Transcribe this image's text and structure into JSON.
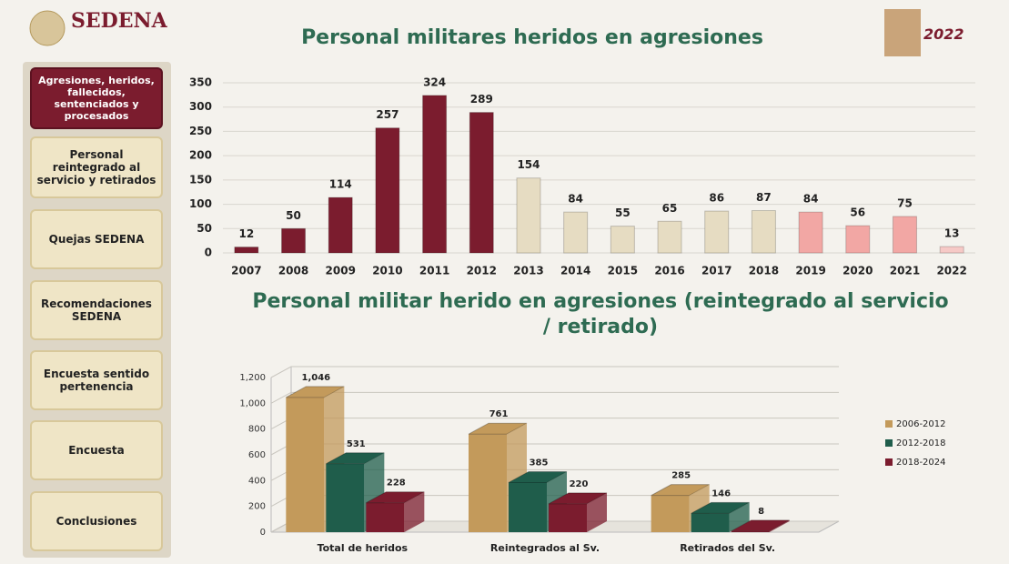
{
  "header": {
    "logo": "SEDENA",
    "badge": "2022"
  },
  "sidebar": {
    "active": 0,
    "buttons": [
      "Agresiones, heridos, fallecidos, sentenciados y procesados",
      "Personal reintegrado al servicio y retirados",
      "Quejas SEDENA",
      "Recomendaciones SEDENA",
      "Encuesta sentido pertenencia",
      "Encuesta",
      "Conclusiones"
    ]
  },
  "chart_data": [
    {
      "type": "bar",
      "title": "Personal militares heridos en agresiones",
      "categories": [
        "2007",
        "2008",
        "2009",
        "2010",
        "2011",
        "2012",
        "2013",
        "2014",
        "2015",
        "2016",
        "2017",
        "2018",
        "2019",
        "2020",
        "2021",
        "2022"
      ],
      "values": [
        12,
        50,
        114,
        257,
        324,
        289,
        154,
        84,
        55,
        65,
        86,
        87,
        84,
        56,
        75,
        13
      ],
      "colors": [
        "#7b1c2e",
        "#7b1c2e",
        "#7b1c2e",
        "#7b1c2e",
        "#7b1c2e",
        "#7b1c2e",
        "#e6dcc2",
        "#e6dcc2",
        "#e6dcc2",
        "#e6dcc2",
        "#e6dcc2",
        "#e6dcc2",
        "#f2a7a4",
        "#f2a7a4",
        "#f2a7a4",
        "#f6c9c6"
      ],
      "ylim": [
        0,
        350
      ],
      "yticks": [
        0,
        50,
        100,
        150,
        200,
        250,
        300,
        350
      ],
      "grid": true
    },
    {
      "type": "bar3d",
      "title": "Personal militar herido en agresiones (reintegrado al servicio / retirado)",
      "categories": [
        "Total de heridos",
        "Reintegrados al Sv.",
        "Retirados del Sv."
      ],
      "series": [
        {
          "name": "2006-2012",
          "color": "#c39a5b",
          "values": [
            1046,
            761,
            285
          ],
          "value_labels": [
            "1,046",
            "761",
            "285"
          ]
        },
        {
          "name": "2012-2018",
          "color": "#1f5d4b",
          "values": [
            531,
            385,
            146
          ]
        },
        {
          "name": "2018-2024",
          "color": "#7b1c2e",
          "values": [
            228,
            220,
            8
          ]
        }
      ],
      "ylim": [
        0,
        1200
      ],
      "yticks": [
        0,
        200,
        400,
        600,
        800,
        {
          "value": 1000,
          "label": "1,000"
        },
        {
          "value": 1200,
          "label": "1,200"
        }
      ],
      "grid": true,
      "legend": "right"
    }
  ]
}
